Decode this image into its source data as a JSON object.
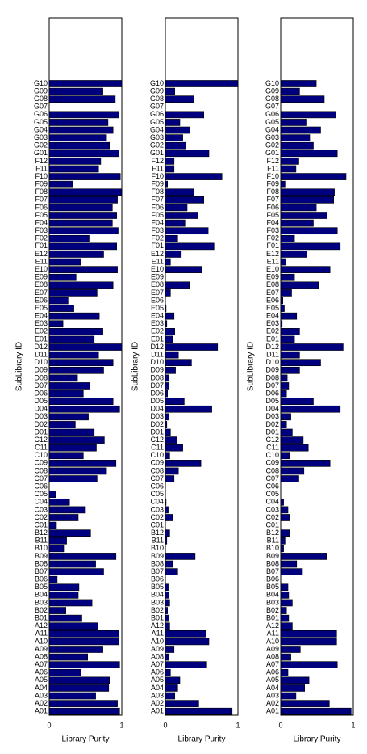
{
  "chart_data": [
    {
      "type": "bar",
      "orientation": "horizontal",
      "color": "#00007f",
      "categories": [
        "A01",
        "A02",
        "A03",
        "A04",
        "A05",
        "A06",
        "A07",
        "A08",
        "A09",
        "A10",
        "A11",
        "A12",
        "B01",
        "B02",
        "B03",
        "B04",
        "B05",
        "B06",
        "B07",
        "B08",
        "B09",
        "B10",
        "B11",
        "B12",
        "C01",
        "C02",
        "C03",
        "C04",
        "C05",
        "C06",
        "C07",
        "C08",
        "C09",
        "C10",
        "C11",
        "C12",
        "D01",
        "D02",
        "D03",
        "D04",
        "D05",
        "D06",
        "D07",
        "D08",
        "D09",
        "D10",
        "D11",
        "D12",
        "E01",
        "E02",
        "E03",
        "E04",
        "E05",
        "E06",
        "E07",
        "E08",
        "E09",
        "E10",
        "E11",
        "E12",
        "F01",
        "F02",
        "F03",
        "F04",
        "F05",
        "F06",
        "F07",
        "F08",
        "F09",
        "F10",
        "F11",
        "F12",
        "G01",
        "G02",
        "G03",
        "G04",
        "G05",
        "G06",
        "G07",
        "G08",
        "G09",
        "G10"
      ],
      "values": [
        0.97,
        0.94,
        0.64,
        0.82,
        0.83,
        0.44,
        0.97,
        0.53,
        0.74,
        0.96,
        0.96,
        0.67,
        0.45,
        0.23,
        0.59,
        0.4,
        0.41,
        0.11,
        0.75,
        0.64,
        0.92,
        0.2,
        0.24,
        0.57,
        0.1,
        0.4,
        0.5,
        0.28,
        0.09,
        0,
        0.66,
        0.79,
        0.92,
        0.47,
        0.65,
        0.76,
        0.62,
        0.36,
        0.54,
        0.97,
        0.88,
        0.47,
        0.56,
        0.39,
        0.75,
        0.88,
        0.68,
        1.0,
        0.62,
        0.74,
        0.19,
        0.69,
        0.34,
        0.26,
        0.66,
        0.88,
        0.37,
        0.94,
        0.44,
        0.75,
        0.93,
        0.55,
        0.95,
        0.87,
        0.93,
        0.87,
        0.94,
        1.0,
        0.32,
        0.98,
        0.68,
        0.71,
        0.96,
        0.83,
        0.79,
        0.88,
        0.81,
        0.96,
        0,
        0.91,
        0.74,
        1.0
      ],
      "xlim": [
        0,
        1
      ],
      "xticks": [
        0,
        1
      ],
      "xlabel": "Library Purity",
      "ylabel": "SubLibrary ID"
    },
    {
      "type": "bar",
      "orientation": "horizontal",
      "color": "#00007f",
      "categories": [
        "A01",
        "A02",
        "A03",
        "A04",
        "A05",
        "A06",
        "A07",
        "A08",
        "A09",
        "A10",
        "A11",
        "A12",
        "B01",
        "B02",
        "B03",
        "B04",
        "B05",
        "B06",
        "B07",
        "B08",
        "B09",
        "B10",
        "B11",
        "B12",
        "C01",
        "C02",
        "C03",
        "C04",
        "C05",
        "C06",
        "C07",
        "C08",
        "C09",
        "C10",
        "C11",
        "C12",
        "D01",
        "D02",
        "D03",
        "D04",
        "D05",
        "D06",
        "D07",
        "D08",
        "D09",
        "D10",
        "D11",
        "D12",
        "E01",
        "E02",
        "E03",
        "E04",
        "E05",
        "E06",
        "E07",
        "E08",
        "E09",
        "E10",
        "E11",
        "E12",
        "F01",
        "F02",
        "F03",
        "F04",
        "F05",
        "F06",
        "F07",
        "F08",
        "F09",
        "F10",
        "F11",
        "F12",
        "G01",
        "G02",
        "G03",
        "G04",
        "G05",
        "G06",
        "G07",
        "G08",
        "G09",
        "G10"
      ],
      "values": [
        0.92,
        0.46,
        0.13,
        0.17,
        0.2,
        0.07,
        0.57,
        0.05,
        0.12,
        0.6,
        0.56,
        0.06,
        0.05,
        0.03,
        0.06,
        0.05,
        0.04,
        0,
        0.17,
        0.1,
        0.41,
        0,
        0.02,
        0.06,
        0,
        0.1,
        0.04,
        0.01,
        0,
        0,
        0.12,
        0.18,
        0.49,
        0.06,
        0.24,
        0.16,
        0.07,
        0.02,
        0.05,
        0.64,
        0.26,
        0.03,
        0.05,
        0.05,
        0.14,
        0.36,
        0.18,
        0.72,
        0.1,
        0.13,
        0.02,
        0.12,
        0.01,
        0,
        0.07,
        0.33,
        0,
        0.5,
        0.07,
        0.22,
        0.67,
        0.17,
        0.59,
        0.27,
        0.45,
        0.3,
        0.53,
        0.39,
        0.03,
        0.78,
        0.12,
        0.12,
        0.6,
        0.28,
        0.24,
        0.34,
        0.2,
        0.53,
        0,
        0.39,
        0.13,
        1.0
      ],
      "xlim": [
        0,
        1
      ],
      "xticks": [
        0,
        1
      ],
      "xlabel": "Library Purity",
      "ylabel": "SubLibrary ID"
    },
    {
      "type": "bar",
      "orientation": "horizontal",
      "color": "#00007f",
      "categories": [
        "A01",
        "A02",
        "A03",
        "A04",
        "A05",
        "A06",
        "A07",
        "A08",
        "A09",
        "A10",
        "A11",
        "A12",
        "B01",
        "B02",
        "B03",
        "B04",
        "B05",
        "B06",
        "B07",
        "B08",
        "B09",
        "B10",
        "B11",
        "B12",
        "C01",
        "C02",
        "C03",
        "C04",
        "C05",
        "C06",
        "C07",
        "C08",
        "C09",
        "C10",
        "C11",
        "C12",
        "D01",
        "D02",
        "D03",
        "D04",
        "D05",
        "D06",
        "D07",
        "D08",
        "D09",
        "D10",
        "D11",
        "D12",
        "E01",
        "E02",
        "E03",
        "E04",
        "E05",
        "E06",
        "E07",
        "E08",
        "E09",
        "E10",
        "E11",
        "E12",
        "F01",
        "F02",
        "F03",
        "F04",
        "F05",
        "F06",
        "F07",
        "F08",
        "F09",
        "F10",
        "F11",
        "F12",
        "G01",
        "G02",
        "G03",
        "G04",
        "G05",
        "G06",
        "G07",
        "G08",
        "G09",
        "G10"
      ],
      "values": [
        0.97,
        0.67,
        0.21,
        0.33,
        0.39,
        0.1,
        0.78,
        0.14,
        0.27,
        0.77,
        0.77,
        0.16,
        0.11,
        0.08,
        0.16,
        0.11,
        0.1,
        0,
        0.3,
        0.22,
        0.63,
        0.04,
        0.06,
        0.12,
        0,
        0.12,
        0.1,
        0.04,
        0,
        0,
        0.25,
        0.32,
        0.68,
        0.12,
        0.38,
        0.31,
        0.16,
        0.08,
        0.14,
        0.82,
        0.45,
        0.08,
        0.11,
        0.09,
        0.26,
        0.55,
        0.26,
        0.86,
        0.19,
        0.26,
        0.02,
        0.22,
        0.05,
        0.03,
        0.15,
        0.52,
        0.19,
        0.68,
        0.07,
        0.36,
        0.82,
        0.19,
        0.78,
        0.45,
        0.64,
        0.49,
        0.73,
        0.74,
        0.06,
        0.9,
        0.21,
        0.25,
        0.78,
        0.45,
        0.4,
        0.55,
        0.35,
        0.76,
        0,
        0.6,
        0.26,
        0.49
      ],
      "xlim": [
        0,
        1
      ],
      "xticks": [
        0,
        1
      ],
      "xlabel": "Library Purity",
      "ylabel": "SubLibrary ID"
    }
  ]
}
